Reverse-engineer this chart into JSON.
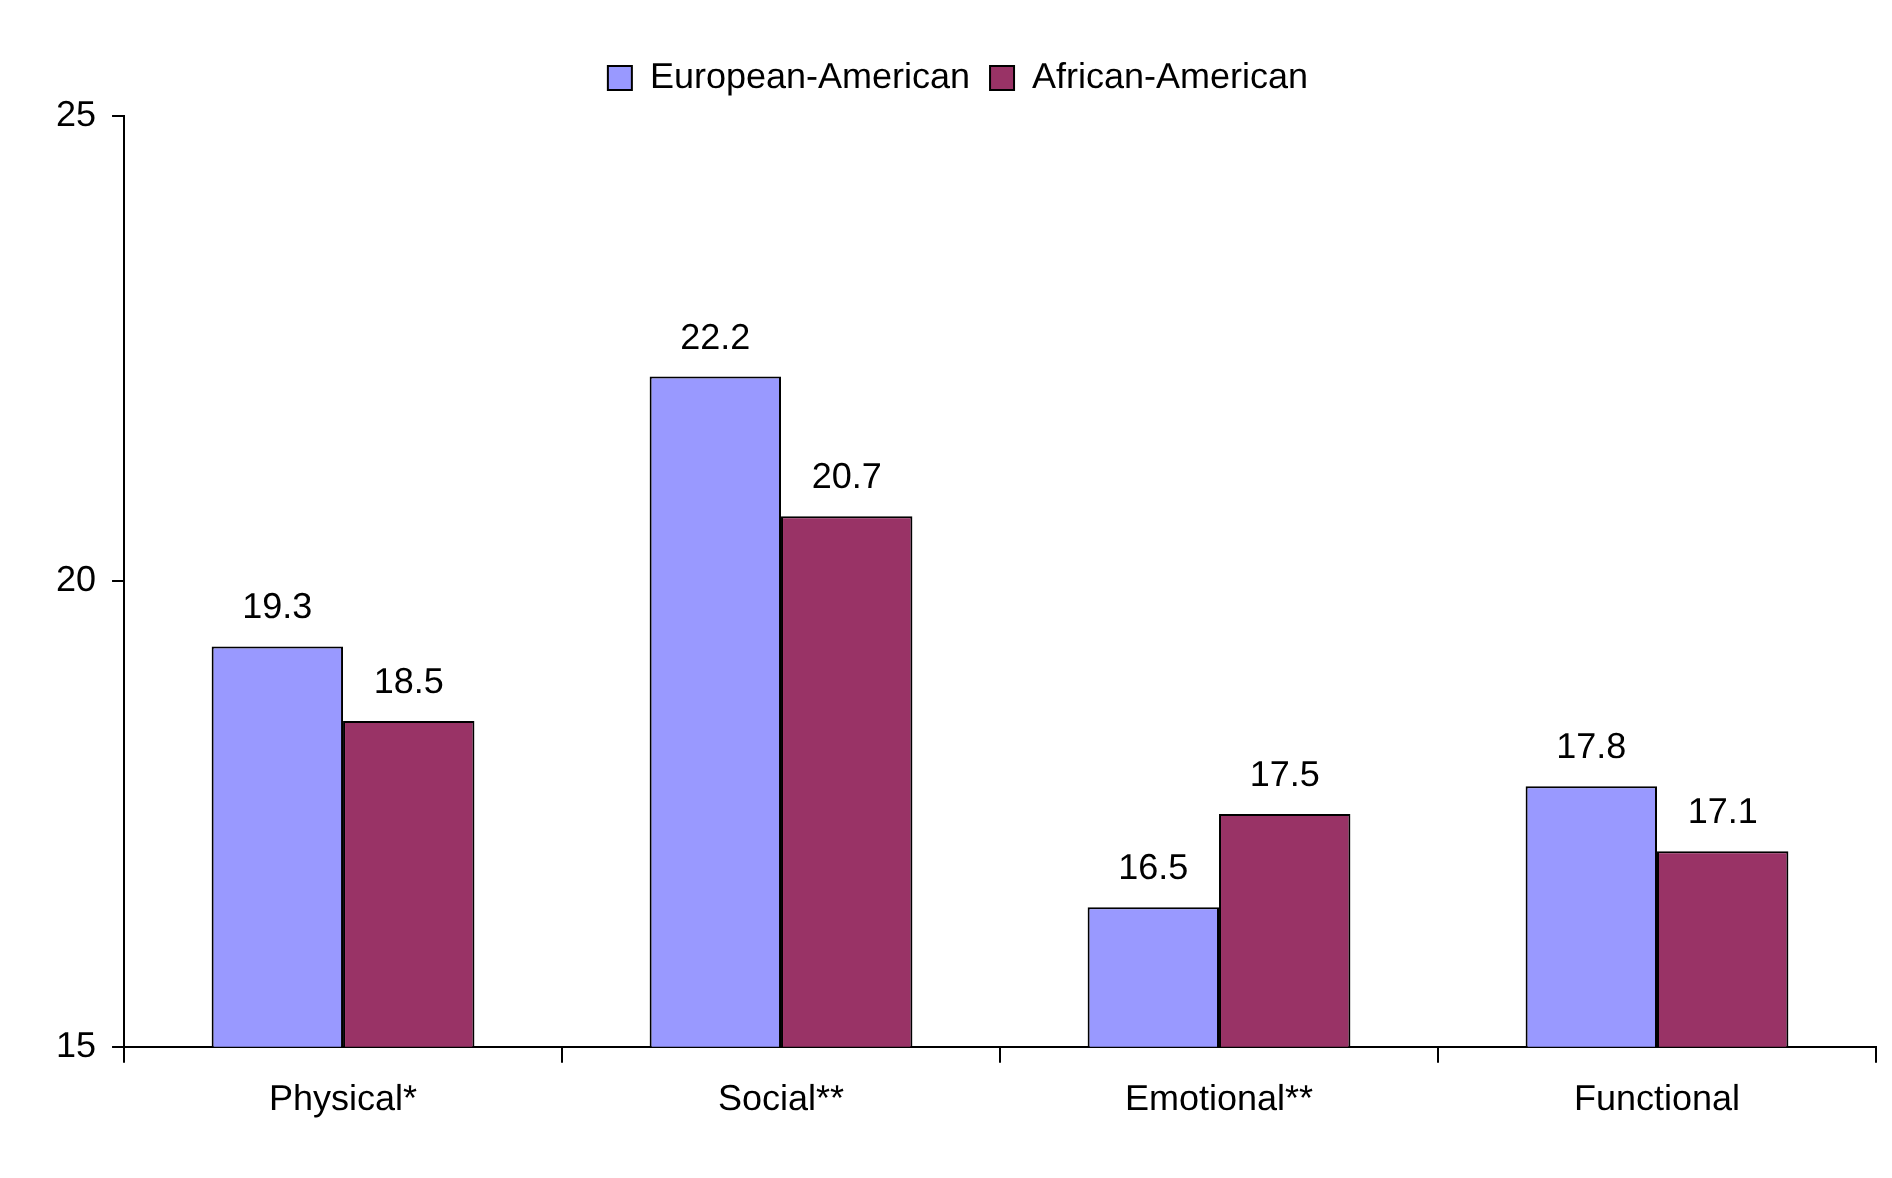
{
  "chart_data": {
    "type": "bar",
    "categories": [
      "Physical*",
      "Social**",
      "Emotional**",
      "Functional"
    ],
    "series": [
      {
        "name": "European-American",
        "color": "#9999ff",
        "values": [
          19.3,
          22.2,
          16.5,
          17.8
        ]
      },
      {
        "name": "African-American",
        "color": "#993366",
        "values": [
          18.5,
          20.7,
          17.5,
          17.1
        ]
      }
    ],
    "ylim": [
      15,
      25
    ],
    "yticks": [
      15,
      20,
      25
    ],
    "grid": false,
    "legend": "top",
    "data_labels": true
  }
}
